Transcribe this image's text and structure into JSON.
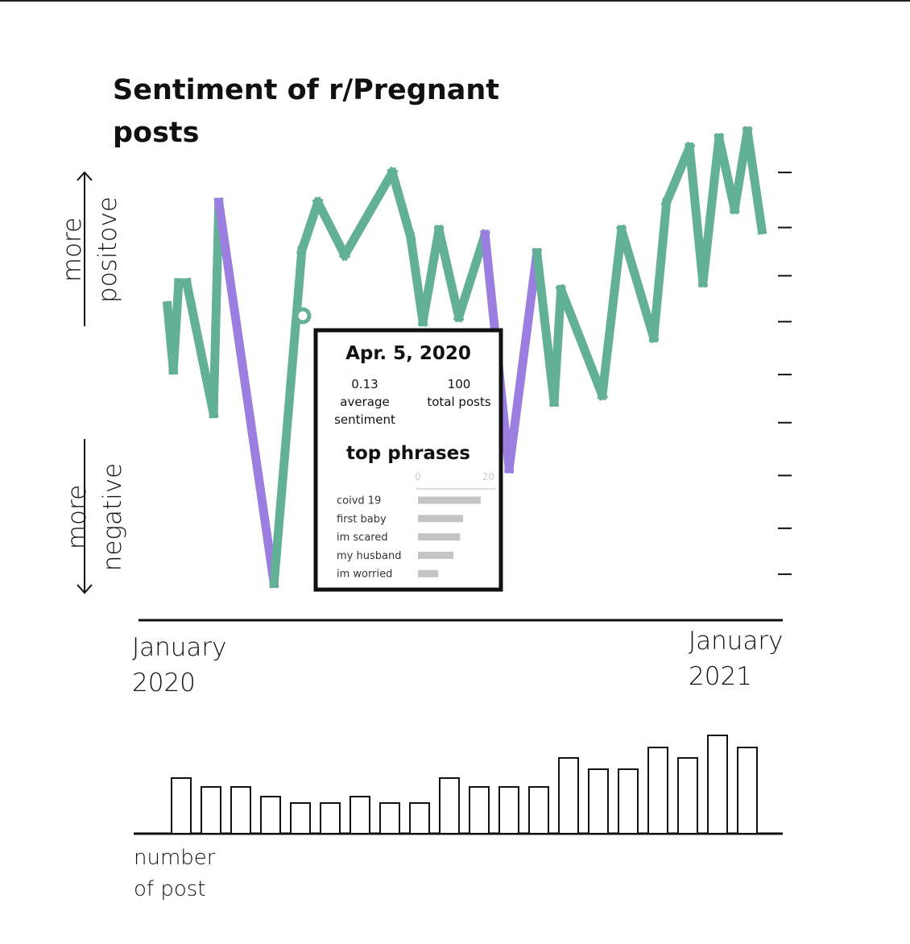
{
  "title": "Sentiment of r/Pregnant posts",
  "positive_label": "more positove",
  "negative_label": "more negative",
  "chart_data": [
    {
      "type": "line",
      "x": [
        0.54,
        0.65,
        0.75,
        0.9,
        1.4,
        1.5,
        2.53,
        3.05,
        3.35,
        3.85,
        4.74,
        5.08,
        5.31,
        5.61,
        5.98,
        6.47,
        6.92,
        7.44,
        7.76,
        7.89,
        8.66,
        9.02,
        9.62,
        9.86,
        10.29,
        10.54,
        10.84,
        11.13,
        11.37,
        11.64
      ],
      "values": [
        0.23,
        -0.05,
        0.33,
        0.33,
        -0.24,
        0.68,
        -0.98,
        0.47,
        0.68,
        0.45,
        0.81,
        0.53,
        0.16,
        0.56,
        0.18,
        0.54,
        -0.48,
        0.46,
        -0.19,
        0.3,
        -0.16,
        0.56,
        0.09,
        0.68,
        0.92,
        0.33,
        0.96,
        0.65,
        0.99,
        0.56
      ],
      "color": "#62b096",
      "segment_colors": [
        "#62b096",
        "#62b096",
        "#62b096",
        "#62b096",
        "#62b096",
        "#9b7fe0",
        "#62b096",
        "#62b096",
        "#62b096",
        "#62b096",
        "#62b096",
        "#62b096",
        "#62b096",
        "#62b096",
        "#62b096",
        "#9b7fe0",
        "#9b7fe0",
        "#62b096",
        "#62b096",
        "#62b096",
        "#62b096",
        "#62b096",
        "#62b096",
        "#62b096",
        "#62b096",
        "#62b096",
        "#62b096",
        "#62b096",
        "#62b096"
      ],
      "xlim": [
        0,
        12
      ],
      "xticks": [
        {
          "value": 0,
          "label": "January 2020"
        },
        {
          "value": 12,
          "label": "January 2021"
        }
      ],
      "ylim": [
        -1,
        1
      ],
      "yticks": [
        0.81,
        0.57,
        0.36,
        0.16,
        -0.07,
        -0.28,
        -0.51,
        -0.74,
        -0.94
      ]
    },
    {
      "type": "bar",
      "values": [
        69,
        58,
        58,
        46,
        38,
        38,
        46,
        38,
        38,
        69,
        58,
        58,
        58,
        94,
        80,
        80,
        107,
        94,
        122,
        107
      ],
      "ylim": [
        0,
        130
      ],
      "label": "number of post"
    }
  ],
  "tooltip": {
    "date": "Apr. 5,  2020",
    "sentiment": 0.13,
    "sentiment_label": "average sentiment",
    "posts": 100,
    "posts_label": "total posts",
    "heading": "top phrases",
    "chart": {
      "type": "bar",
      "categories": [
        "coivd 19",
        "first baby",
        "im scared",
        "my husband",
        "im worried"
      ],
      "values": [
        16.4,
        11.8,
        11,
        9.3,
        5.3
      ],
      "color": "#c4c4c4",
      "xlim": [
        0,
        20
      ],
      "xticks": [
        0,
        20
      ]
    }
  }
}
